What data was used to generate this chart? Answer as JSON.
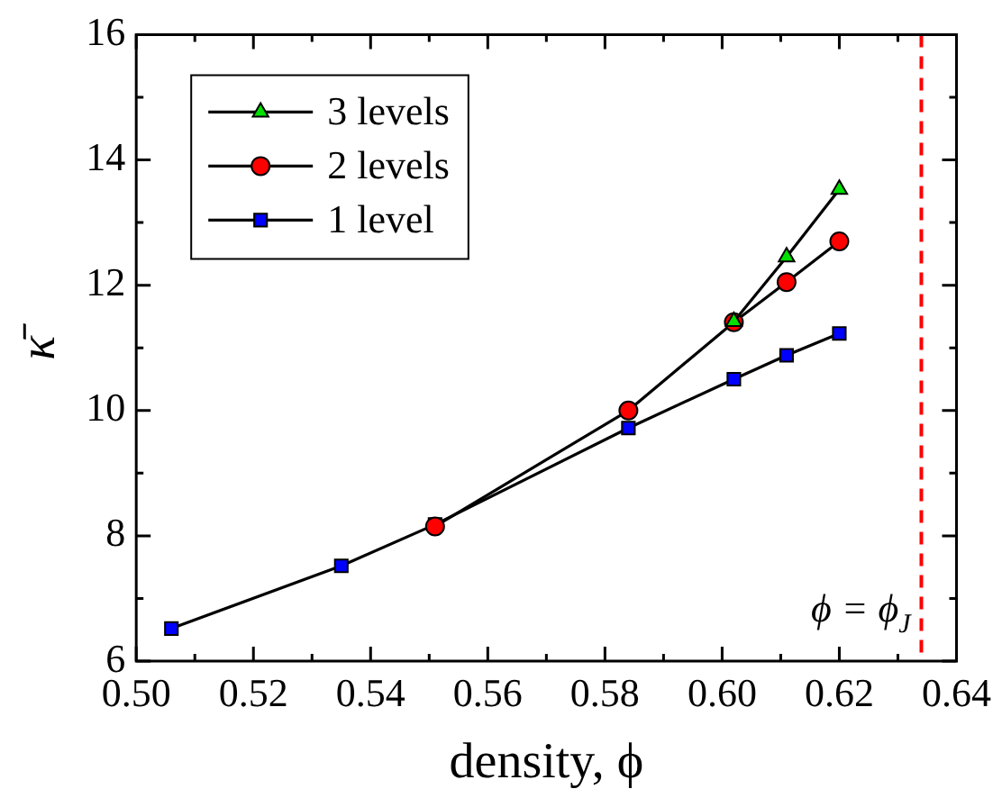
{
  "chart_data": {
    "type": "line",
    "xlabel": "density, ϕ",
    "ylabel": "κ̄",
    "xlim": [
      0.5,
      0.64
    ],
    "xticks": [
      {
        "value": 0.5,
        "label": "0.50"
      },
      {
        "value": 0.51,
        "label": null
      },
      0.52,
      {
        "value": 0.53,
        "label": null
      },
      0.54,
      {
        "value": 0.55,
        "label": null
      },
      0.56,
      {
        "value": 0.57,
        "label": null
      },
      0.58,
      {
        "value": 0.59,
        "label": null
      },
      {
        "value": 0.6,
        "label": "0.60"
      },
      {
        "value": 0.61,
        "label": null
      },
      0.62,
      {
        "value": 0.63,
        "label": null
      },
      0.64
    ],
    "ylim": [
      6,
      16
    ],
    "yticks": [
      6,
      {
        "value": 7,
        "label": null
      },
      8,
      {
        "value": 9,
        "label": null
      },
      10,
      {
        "value": 11,
        "label": null
      },
      12,
      {
        "value": 13,
        "label": null
      },
      14,
      {
        "value": 15,
        "label": null
      },
      16
    ],
    "series": [
      {
        "name": "3 levels",
        "color": "#00e000",
        "marker": "triangle",
        "x": [
          0.602,
          0.611,
          0.62
        ],
        "values": [
          11.42,
          12.45,
          13.53
        ]
      },
      {
        "name": "2 levels",
        "color": "#ff0000",
        "marker": "circle",
        "x": [
          0.551,
          0.584,
          0.602,
          0.611,
          0.62
        ],
        "values": [
          8.15,
          10.0,
          11.41,
          12.05,
          12.7
        ]
      },
      {
        "name": "1 level",
        "color": "#0000ff",
        "marker": "square",
        "x": [
          0.506,
          0.535,
          0.551,
          0.584,
          0.602,
          0.611,
          0.62
        ],
        "values": [
          6.52,
          7.52,
          8.18,
          9.72,
          10.5,
          10.88,
          11.23
        ]
      }
    ],
    "ref_lines": [
      {
        "axis": "x",
        "value": 0.634,
        "label": "ϕ = ϕ$_{J}$",
        "color": "#ff0000",
        "line_style": "dashed"
      }
    ],
    "legend": "top left",
    "grid": false
  }
}
